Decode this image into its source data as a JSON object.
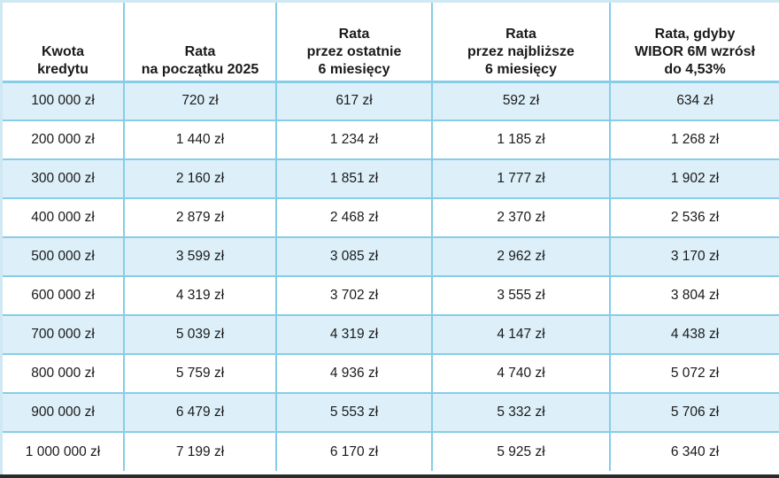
{
  "table": {
    "headers": [
      "Kwota\nkredytu",
      "Rata\nna początku 2025",
      "Rata\nprzez ostatnie\n6 miesięcy",
      "Rata\nprzez najbliższe\n6 miesięcy",
      "Rata, gdyby\nWIBOR 6M wzrósł\ndo 4,53%"
    ],
    "rows": [
      [
        "100 000 zł",
        "720 zł",
        "617 zł",
        "592 zł",
        "634 zł"
      ],
      [
        "200 000 zł",
        "1 440 zł",
        "1 234 zł",
        "1 185 zł",
        "1 268 zł"
      ],
      [
        "300 000 zł",
        "2 160 zł",
        "1 851 zł",
        "1 777 zł",
        "1 902 zł"
      ],
      [
        "400 000 zł",
        "2 879 zł",
        "2 468 zł",
        "2 370 zł",
        "2 536 zł"
      ],
      [
        "500 000 zł",
        "3 599 zł",
        "3 085 zł",
        "2 962 zł",
        "3 170 zł"
      ],
      [
        "600 000 zł",
        "4 319 zł",
        "3 702 zł",
        "3 555 zł",
        "3 804 zł"
      ],
      [
        "700 000 zł",
        "5 039 zł",
        "4 319 zł",
        "4 147 zł",
        "4 438 zł"
      ],
      [
        "800 000 zł",
        "5 759 zł",
        "4 936 zł",
        "4 740 zł",
        "5 072 zł"
      ],
      [
        "900 000 zł",
        "6 479 zł",
        "5 553 zł",
        "5 332 zł",
        "5 706 zł"
      ],
      [
        "1 000 000 zł",
        "7 199 zł",
        "6 170 zł",
        "5 925 zł",
        "6 340 zł"
      ]
    ]
  },
  "colors": {
    "row_shade": "#ddf0f9",
    "border": "#86cde8",
    "text": "#1a1a1a"
  }
}
